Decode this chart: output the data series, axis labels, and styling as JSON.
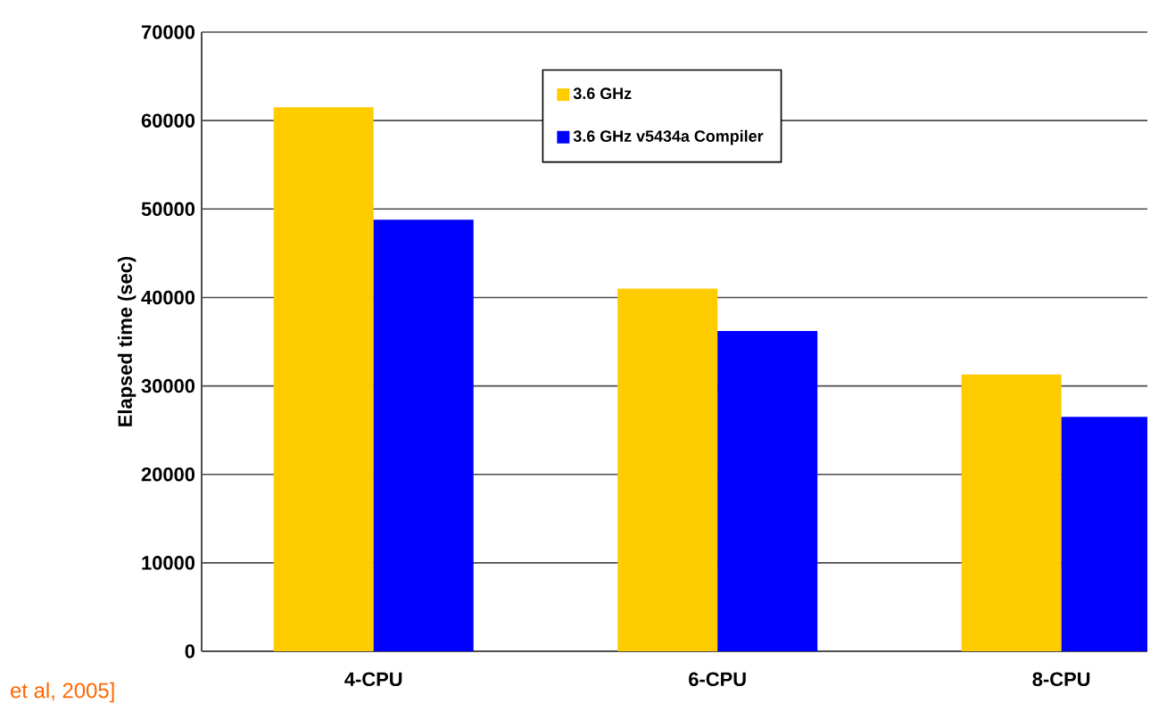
{
  "chart_data": {
    "type": "bar",
    "categories": [
      "4-CPU",
      "6-CPU",
      "8-CPU"
    ],
    "series": [
      {
        "name": "3.6 GHz",
        "color": "#ffcc00",
        "values": [
          61500,
          41000,
          31300
        ]
      },
      {
        "name": "3.6 GHz v5434a Compiler",
        "color": "#0000ff",
        "values": [
          48800,
          36200,
          26500
        ]
      }
    ],
    "ylabel": "Elapsed time (sec)",
    "ylim": [
      0,
      70000
    ],
    "yticks": [
      0,
      10000,
      20000,
      30000,
      40000,
      50000,
      60000,
      70000
    ],
    "grid": "y",
    "legend": "top right",
    "annotations": [
      "et al, 2005]"
    ]
  }
}
